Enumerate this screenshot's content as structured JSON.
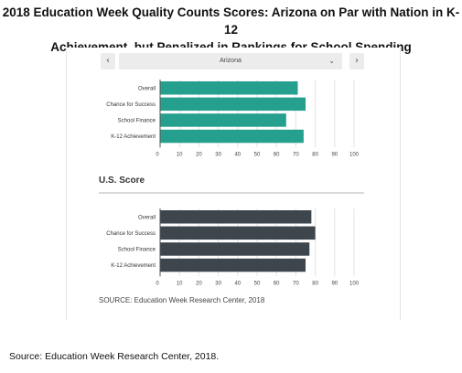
{
  "title_lines": [
    "2018 Education Week Quality Counts Scores: Arizona on Par with Nation in K-12",
    "Achievement, but Penalized in Rankings for School Spending"
  ],
  "controls": {
    "prev_icon": "chevron-left-icon",
    "next_icon": "chevron-right-icon",
    "dropdown_icon": "chevron-down-icon",
    "prev_glyph": "‹",
    "next_glyph": "›",
    "dropdown_glyph": "⌄",
    "selected_state": "Arizona"
  },
  "us_section_title": "U.S. Score",
  "inner_source": "SOURCE: Education Week Research Center, 2018",
  "outer_source": "Source: Education Week Research Center, 2018.",
  "colors": {
    "arizona": "#26a08e",
    "us": "#3d464c",
    "grid": "#e3e3e3",
    "axis": "#555555"
  },
  "chart_data": [
    {
      "type": "bar",
      "orientation": "horizontal",
      "categories": [
        "Overall",
        "Chance for Success",
        "School Finance",
        "K-12 Achievement"
      ],
      "values": [
        71,
        75,
        65,
        74
      ],
      "xlim": [
        0,
        100
      ],
      "xticks": [
        "0",
        "10",
        "20",
        "30",
        "40",
        "50",
        "60",
        "70",
        "80",
        "90",
        "100"
      ],
      "grid": true
    },
    {
      "type": "bar",
      "orientation": "horizontal",
      "title": "U.S. Score",
      "categories": [
        "Overall",
        "Chance for Success",
        "School Finance",
        "K-12 Achievement"
      ],
      "values": [
        78,
        80,
        77,
        75
      ],
      "xlim": [
        0,
        100
      ],
      "xticks": [
        "0",
        "10",
        "20",
        "30",
        "40",
        "50",
        "60",
        "70",
        "80",
        "90",
        "100"
      ],
      "grid": true
    }
  ]
}
